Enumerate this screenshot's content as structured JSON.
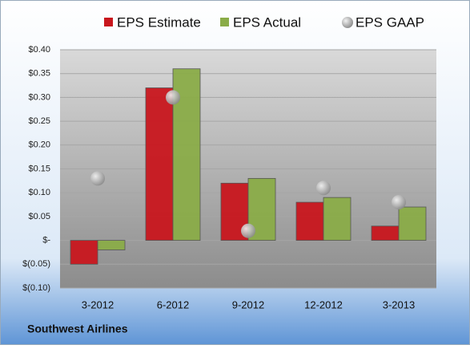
{
  "chart_data": {
    "type": "bar",
    "categories": [
      "3-2012",
      "6-2012",
      "9-2012",
      "12-2012",
      "3-2013"
    ],
    "series": [
      {
        "name": "EPS Estimate",
        "color": "#c8161d",
        "mark": "bar",
        "values": [
          -0.05,
          0.32,
          0.12,
          0.08,
          0.03
        ]
      },
      {
        "name": "EPS Actual",
        "color": "#8aac48",
        "mark": "bar",
        "values": [
          -0.02,
          0.36,
          0.13,
          0.09,
          0.07
        ]
      },
      {
        "name": "EPS GAAP",
        "color": "#a8a8a8",
        "mark": "dot",
        "values": [
          0.13,
          0.3,
          0.02,
          0.11,
          0.08
        ]
      }
    ],
    "ylim": [
      -0.1,
      0.4
    ],
    "yticks": [
      {
        "value": -0.1,
        "label": "$(0.10)"
      },
      {
        "value": -0.05,
        "label": "$(0.05)"
      },
      {
        "value": 0,
        "label": "$-"
      },
      {
        "value": 0.05,
        "label": "$0.05"
      },
      {
        "value": 0.1,
        "label": "$0.10"
      },
      {
        "value": 0.15,
        "label": "$0.15"
      },
      {
        "value": 0.2,
        "label": "$0.20"
      },
      {
        "value": 0.25,
        "label": "$0.25"
      },
      {
        "value": 0.3,
        "label": "$0.30"
      },
      {
        "value": 0.35,
        "label": "$0.35"
      },
      {
        "value": 0.4,
        "label": "$0.40"
      }
    ],
    "grid": true,
    "legend": "top",
    "annotation": "Southwest Airlines"
  }
}
